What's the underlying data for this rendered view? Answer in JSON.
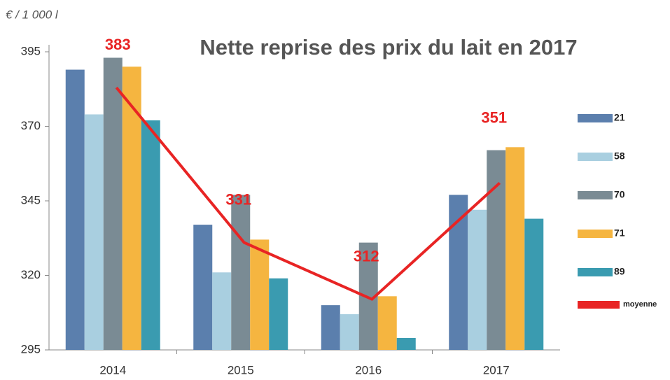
{
  "chart_data": {
    "type": "bar",
    "title": "Nette reprise des prix du lait en 2017",
    "y_label": "€ / 1 000 l",
    "categories": [
      "2014",
      "2015",
      "2016",
      "2017"
    ],
    "series": [
      {
        "name": "21",
        "color": "#5b7fad",
        "values": [
          389,
          337,
          310,
          347
        ]
      },
      {
        "name": "58",
        "color": "#a9cfe0",
        "values": [
          374,
          321,
          307,
          342
        ]
      },
      {
        "name": "70",
        "color": "#7a8b94",
        "values": [
          393,
          347,
          331,
          362
        ]
      },
      {
        "name": "71",
        "color": "#f5b540",
        "values": [
          390,
          332,
          313,
          363
        ]
      },
      {
        "name": "89",
        "color": "#3a9bb0",
        "values": [
          372,
          319,
          299,
          339
        ]
      },
      {
        "name": "moyenne",
        "color": "#e82424",
        "type": "line",
        "values": [
          383,
          331,
          312,
          351
        ]
      }
    ],
    "ylim": [
      295,
      395
    ],
    "yticks": [
      295,
      320,
      345,
      370,
      395
    ],
    "legend": "right"
  }
}
